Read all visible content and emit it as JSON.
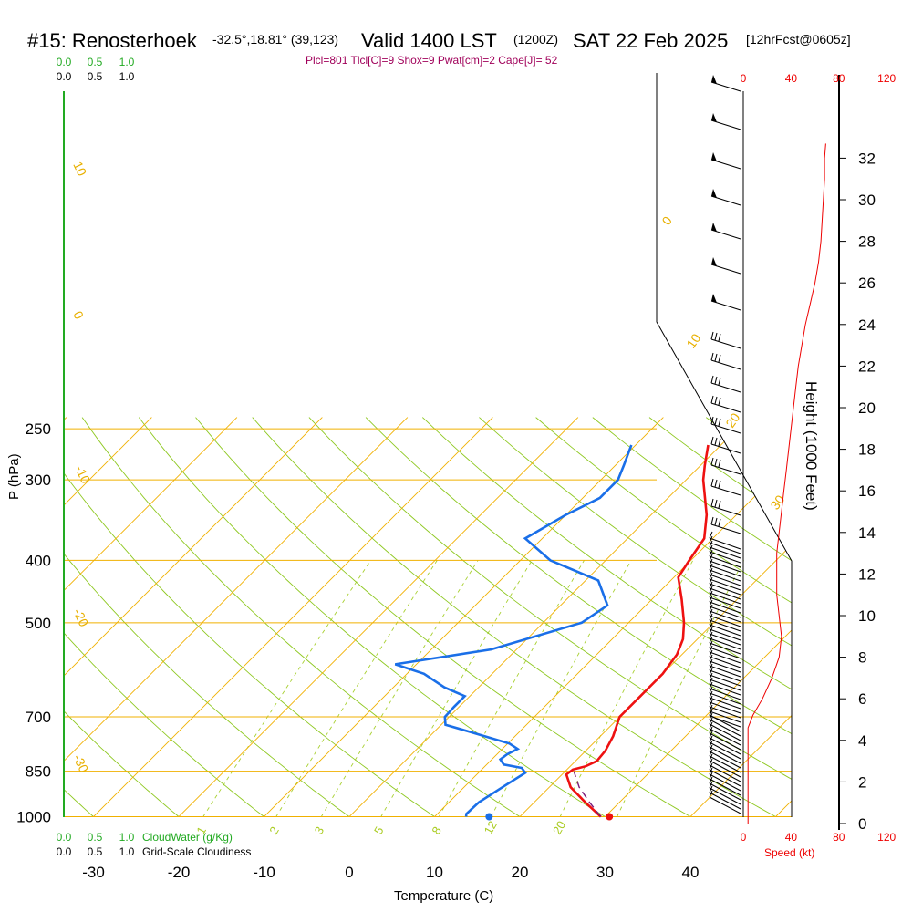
{
  "header": {
    "station": "#15: Renosterhoek",
    "location": "-32.5°,18.81° (39,123)",
    "valid": "Valid 1400 LST",
    "utc": "(1200Z)",
    "date": "SAT 22 Feb 2025",
    "fcst": "[12hrFcst@0605z]"
  },
  "indices": "Plcl=801 Tlcl[C]=9 Shox=9 Pwat[cm]=2 Cape[J]= 52",
  "colors": {
    "isotherm": "#f0b000",
    "dry_adiabat": "#8ec820",
    "mixing_ratio": "#a8d030",
    "temperature": "#ee1111",
    "dewpoint": "#1a6fe8",
    "parcel": "#7a1a7a",
    "wind": "#000000",
    "cloud": "#22aa22",
    "speed": "#ee0000"
  },
  "chart_data": {
    "type": "line",
    "title": "#15: Renosterhoek  Valid 1400 LST (1200Z) SAT 22 Feb 2025",
    "xlabel": "Temperature (C)",
    "ylabel": "P (hPa)",
    "x_ticks": [
      "-30",
      "-20",
      "-10",
      "0",
      "10",
      "20",
      "30",
      "40"
    ],
    "pressure_ticks": [
      "250",
      "300",
      "400",
      "500",
      "700",
      "850",
      "1000"
    ],
    "height_label": "Height (1000 Feet)",
    "height_ticks": [
      "0",
      "2",
      "4",
      "6",
      "8",
      "10",
      "12",
      "14",
      "16",
      "18",
      "20",
      "22",
      "24",
      "26",
      "28",
      "30",
      "32"
    ],
    "speed_ticks_top": [
      "0",
      "40",
      "80",
      "120"
    ],
    "speed_ticks_bottom": [
      "0",
      "40",
      "80",
      "120"
    ],
    "speed_label": "Speed (kt)",
    "cloud_ticks": [
      "0.0",
      "0.5",
      "1.0"
    ],
    "cloudwater_label": "CloudWater (g/Kg)",
    "cloudiness_label": "Grid-Scale Cloudiness",
    "isotherm_labels": [
      "10",
      "0",
      "-10",
      "-20",
      "-30",
      "0",
      "10",
      "20",
      "30"
    ],
    "mixing_ratio_labels": [
      "1",
      "2",
      "3",
      "5",
      "8",
      "12",
      "20"
    ],
    "series": [
      {
        "name": "Temperature",
        "points": [
          {
            "p": 1000,
            "t": 29.5
          },
          {
            "p": 950,
            "t": 26.0
          },
          {
            "p": 900,
            "t": 22.5
          },
          {
            "p": 860,
            "t": 20.5
          },
          {
            "p": 845,
            "t": 20.7
          },
          {
            "p": 835,
            "t": 21.8
          },
          {
            "p": 820,
            "t": 22.5
          },
          {
            "p": 790,
            "t": 22.3
          },
          {
            "p": 750,
            "t": 21.5
          },
          {
            "p": 700,
            "t": 20.0
          },
          {
            "p": 650,
            "t": 20.0
          },
          {
            "p": 600,
            "t": 20.0
          },
          {
            "p": 560,
            "t": 19.4
          },
          {
            "p": 530,
            "t": 18.3
          },
          {
            "p": 500,
            "t": 16.5
          },
          {
            "p": 460,
            "t": 13.5
          },
          {
            "p": 425,
            "t": 10.5
          },
          {
            "p": 400,
            "t": 9.8
          },
          {
            "p": 370,
            "t": 9.0
          },
          {
            "p": 340,
            "t": 6.5
          },
          {
            "p": 300,
            "t": 2.0
          },
          {
            "p": 285,
            "t": 0.5
          },
          {
            "p": 265,
            "t": -1.5
          }
        ]
      },
      {
        "name": "Dewpoint",
        "points": [
          {
            "p": 1000,
            "t": 13.7
          },
          {
            "p": 990,
            "t": 13.4
          },
          {
            "p": 950,
            "t": 13.5
          },
          {
            "p": 900,
            "t": 14.5
          },
          {
            "p": 855,
            "t": 15.5
          },
          {
            "p": 840,
            "t": 14.5
          },
          {
            "p": 830,
            "t": 12.0
          },
          {
            "p": 815,
            "t": 11.0
          },
          {
            "p": 800,
            "t": 11.2
          },
          {
            "p": 785,
            "t": 11.8
          },
          {
            "p": 770,
            "t": 10.2
          },
          {
            "p": 740,
            "t": 4.5
          },
          {
            "p": 720,
            "t": 0.5
          },
          {
            "p": 700,
            "t": -0.5
          },
          {
            "p": 675,
            "t": -0.6
          },
          {
            "p": 650,
            "t": -0.6
          },
          {
            "p": 630,
            "t": -4.0
          },
          {
            "p": 600,
            "t": -8.0
          },
          {
            "p": 580,
            "t": -12.5
          },
          {
            "p": 550,
            "t": -3.0
          },
          {
            "p": 500,
            "t": 4.5
          },
          {
            "p": 470,
            "t": 5.5
          },
          {
            "p": 430,
            "t": 1.5
          },
          {
            "p": 400,
            "t": -6.5
          },
          {
            "p": 370,
            "t": -12.0
          },
          {
            "p": 340,
            "t": -10.0
          },
          {
            "p": 320,
            "t": -8.0
          },
          {
            "p": 300,
            "t": -8.0
          },
          {
            "p": 285,
            "t": -9.0
          },
          {
            "p": 265,
            "t": -10.5
          }
        ]
      },
      {
        "name": "Parcel",
        "points": [
          {
            "p": 1000,
            "t": 29.5
          },
          {
            "p": 950,
            "t": 26.5
          },
          {
            "p": 900,
            "t": 23.5
          },
          {
            "p": 850,
            "t": 21.0
          }
        ]
      }
    ],
    "surface_temperature": 30.5,
    "surface_dewpoint": 16.4,
    "wind_speed_profile_kt": [
      {
        "z": 0,
        "s": 4
      },
      {
        "z": 2,
        "s": 4
      },
      {
        "z": 4,
        "s": 4
      },
      {
        "z": 4.6,
        "s": 4
      },
      {
        "z": 5.2,
        "s": 8
      },
      {
        "z": 6,
        "s": 16
      },
      {
        "z": 7,
        "s": 24
      },
      {
        "z": 8,
        "s": 30
      },
      {
        "z": 9,
        "s": 32
      },
      {
        "z": 10,
        "s": 30
      },
      {
        "z": 11,
        "s": 28
      },
      {
        "z": 12,
        "s": 28
      },
      {
        "z": 13,
        "s": 28
      },
      {
        "z": 14,
        "s": 30
      },
      {
        "z": 15,
        "s": 32
      },
      {
        "z": 16,
        "s": 34
      },
      {
        "z": 17,
        "s": 36
      },
      {
        "z": 18,
        "s": 38
      },
      {
        "z": 19,
        "s": 40
      },
      {
        "z": 20,
        "s": 42
      },
      {
        "z": 21,
        "s": 44
      },
      {
        "z": 22,
        "s": 46
      },
      {
        "z": 23,
        "s": 49
      },
      {
        "z": 24,
        "s": 52
      },
      {
        "z": 25,
        "s": 56
      },
      {
        "z": 26,
        "s": 60
      },
      {
        "z": 27,
        "s": 63
      },
      {
        "z": 28,
        "s": 65
      },
      {
        "z": 30,
        "s": 67
      },
      {
        "z": 31,
        "s": 68
      },
      {
        "z": 32,
        "s": 68
      },
      {
        "z": 32.7,
        "s": 69
      }
    ]
  }
}
